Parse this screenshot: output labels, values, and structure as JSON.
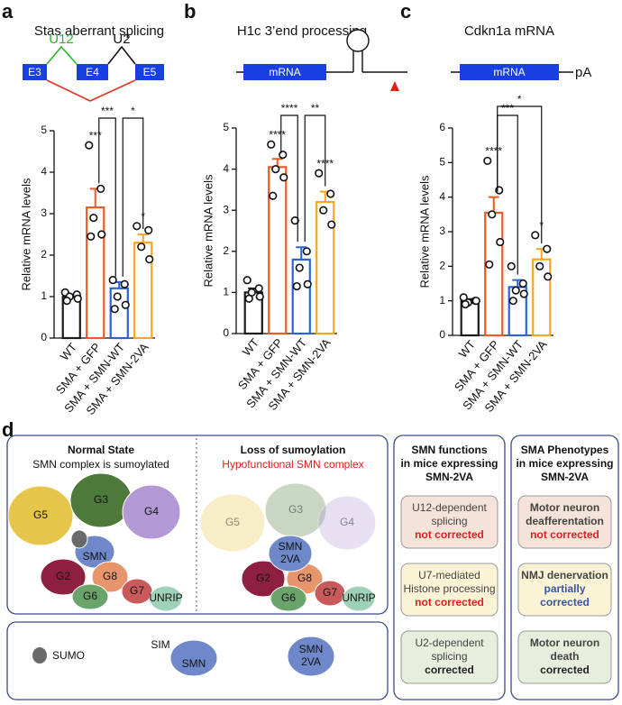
{
  "chart_data": [
    {
      "type": "bar",
      "panel": "a",
      "title": "Stas aberrant splicing",
      "ylabel": "Relative mRNA levels",
      "categories": [
        "WT",
        "SMA + GFP",
        "SMA + SMN-WT",
        "SMA + SMN-2VA"
      ],
      "colors": [
        "#1a1a1a",
        "#ec5b24",
        "#2b63d6",
        "#f5a623"
      ],
      "values": [
        1.0,
        3.15,
        1.2,
        2.3
      ],
      "errors": [
        0.05,
        0.45,
        0.15,
        0.2
      ],
      "points": [
        [
          1.1,
          1.05,
          1.0,
          0.95,
          0.9
        ],
        [
          4.65,
          3.6,
          2.9,
          2.5,
          2.45
        ],
        [
          1.4,
          1.3,
          1.0,
          0.8,
          0.7
        ],
        [
          2.7,
          2.6,
          2.2,
          1.9
        ]
      ],
      "stars": [
        null,
        "***",
        null,
        "*"
      ],
      "comparisons": [
        {
          "pair": [
            "SMA + GFP",
            "SMA + SMN-WT"
          ],
          "label": "***"
        },
        {
          "pair": [
            "SMA + SMN-WT",
            "SMA + SMN-2VA"
          ],
          "label": "*"
        }
      ],
      "ylim": [
        0,
        5
      ],
      "yticks": [
        0,
        1,
        2,
        3,
        4,
        5
      ]
    },
    {
      "type": "bar",
      "panel": "b",
      "title": "H1c 3’end processing",
      "ylabel": "Relative mRNA levels",
      "categories": [
        "WT",
        "SMA + GFP",
        "SMA + SMN-WT",
        "SMA + SMN-2VA"
      ],
      "colors": [
        "#1a1a1a",
        "#ec5b24",
        "#2b63d6",
        "#f5a623"
      ],
      "values": [
        1.0,
        4.05,
        1.8,
        3.2
      ],
      "errors": [
        0.1,
        0.2,
        0.3,
        0.25
      ],
      "points": [
        [
          1.3,
          1.1,
          1.0,
          0.9,
          0.85
        ],
        [
          4.6,
          4.35,
          4.0,
          3.8,
          3.35
        ],
        [
          2.75,
          2.0,
          1.6,
          1.2,
          1.15
        ],
        [
          3.9,
          3.4,
          3.0,
          2.65
        ]
      ],
      "stars": [
        null,
        "****",
        null,
        "****"
      ],
      "comparisons": [
        {
          "pair": [
            "SMA + GFP",
            "SMA + SMN-WT"
          ],
          "label": "****"
        },
        {
          "pair": [
            "SMA + SMN-WT",
            "SMA + SMN-2VA"
          ],
          "label": "**"
        }
      ],
      "ylim": [
        0,
        5
      ],
      "yticks": [
        0,
        1,
        2,
        3,
        4,
        5
      ]
    },
    {
      "type": "bar",
      "panel": "c",
      "title": "Cdkn1a mRNA",
      "ylabel": "Relative mRNA levels",
      "categories": [
        "WT",
        "SMA + GFP",
        "SMA + SMN-WT",
        "SMA + SMN-2VA"
      ],
      "colors": [
        "#1a1a1a",
        "#ec5b24",
        "#2b63d6",
        "#f5a623"
      ],
      "values": [
        1.0,
        3.55,
        1.4,
        2.2
      ],
      "errors": [
        0.05,
        0.45,
        0.2,
        0.3
      ],
      "points": [
        [
          1.1,
          1.0,
          0.95,
          1.0,
          0.9
        ],
        [
          5.05,
          4.2,
          3.5,
          2.7,
          2.05
        ],
        [
          2.0,
          1.5,
          1.3,
          1.2,
          1.0
        ],
        [
          2.9,
          2.5,
          2.0,
          1.7
        ]
      ],
      "stars": [
        null,
        "****",
        null,
        "*"
      ],
      "comparisons": [
        {
          "pair": [
            "SMA + GFP",
            "SMA + SMN-WT"
          ],
          "label": "***"
        },
        {
          "pair": [
            "SMA + GFP",
            "SMA + SMN-2VA"
          ],
          "label": "*"
        }
      ],
      "ylim": [
        0,
        6
      ],
      "yticks": [
        0,
        1,
        2,
        3,
        4,
        5,
        6
      ]
    }
  ],
  "schematics": {
    "a": {
      "exons": [
        "E3",
        "E4",
        "E5"
      ],
      "introns": [
        "U12",
        "U2"
      ]
    },
    "b": {
      "box": "mRNA"
    },
    "c": {
      "box": "mRNA",
      "tail": "pA"
    }
  },
  "panel_d": {
    "label": "d",
    "normal": {
      "title": "Normal State",
      "subtitle": "SMN complex is sumoylated",
      "proteins": [
        "G5",
        "G3",
        "G4",
        "SMN",
        "G2",
        "G8",
        "G7",
        "G6",
        "UNRIP"
      ]
    },
    "loss": {
      "title": "Loss of sumoylation",
      "subtitle": "Hypofunctional SMN complex",
      "proteins": [
        "G5",
        "G3",
        "G4",
        "G2",
        "G8",
        "G7",
        "G6",
        "UNRIP"
      ],
      "smn": [
        "SMN",
        "2VA"
      ]
    },
    "legend": {
      "sumo": "SUMO",
      "sim": "SIM",
      "smn": "SMN",
      "smn_2va": [
        "SMN",
        "2VA"
      ]
    },
    "functions": {
      "title": [
        "SMN functions",
        "in mice expressing",
        "SMN-2VA"
      ],
      "items": [
        {
          "text": [
            "U12-dependent",
            "splicing"
          ],
          "status": [
            "not corrected"
          ],
          "color": "#e02020",
          "fill": "#f5e3da"
        },
        {
          "text": [
            "U7-mediated",
            "Histone processing"
          ],
          "status": [
            "not corrected"
          ],
          "color": "#e02020",
          "fill": "#fbf3d6"
        },
        {
          "text": [
            "U2-dependent",
            "splicing"
          ],
          "status": [
            "corrected"
          ],
          "color": "#222222",
          "fill": "#e5efdb"
        }
      ]
    },
    "phenotypes": {
      "title": [
        "SMA Phenotypes",
        "in mice expressing",
        "SMN-2VA"
      ],
      "items": [
        {
          "text": [
            "Motor neuron",
            "deafferentation"
          ],
          "status": [
            "not corrected"
          ],
          "color": "#e02020",
          "fill": "#f5e3da"
        },
        {
          "text": [
            "NMJ denervation"
          ],
          "status": [
            "partially",
            "corrected"
          ],
          "color": "#3a55a4",
          "fill": "#fbf3d6"
        },
        {
          "text": [
            "Motor neuron",
            "death"
          ],
          "status": [
            "corrected"
          ],
          "color": "#222222",
          "fill": "#e5efdb"
        }
      ]
    }
  }
}
